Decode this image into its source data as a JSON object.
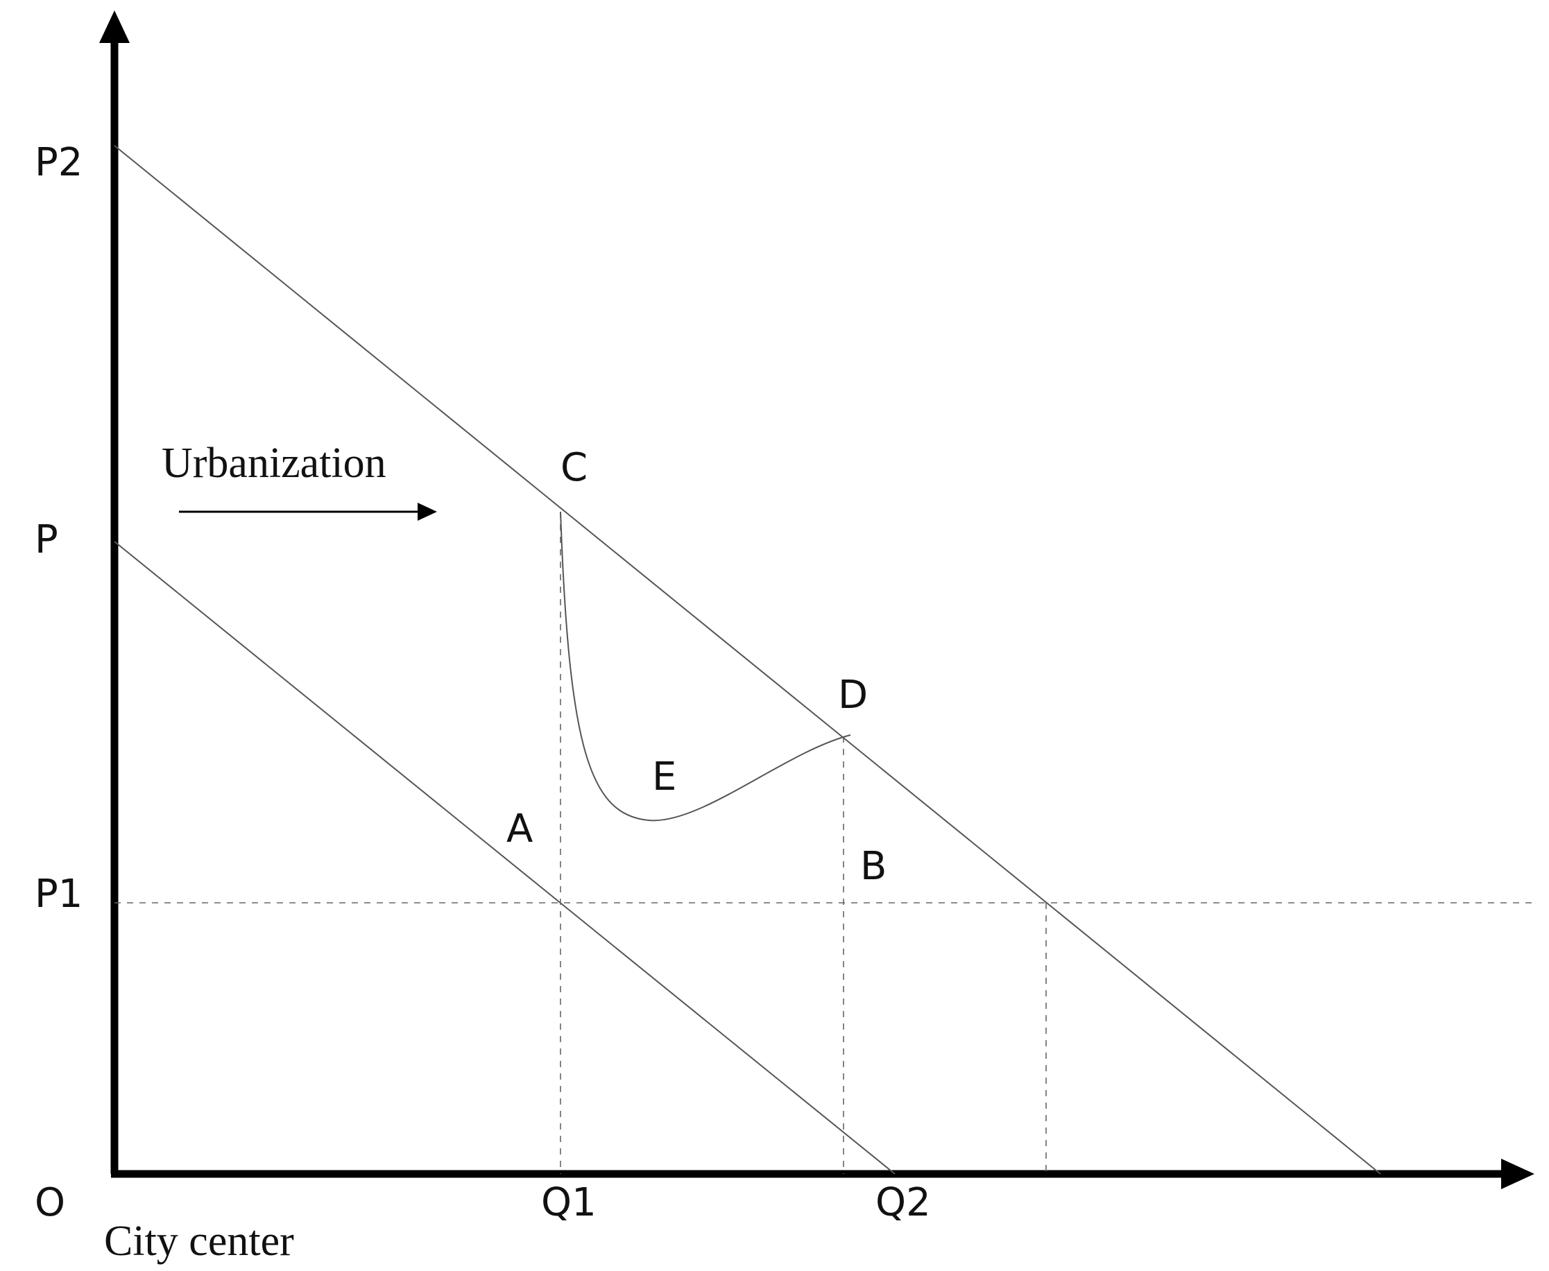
{
  "diagram": {
    "annotation": "Urbanization",
    "origin_label": "O",
    "origin_caption": "City center",
    "y_labels": {
      "p2": "P2",
      "p": "P",
      "p1": "P1"
    },
    "x_labels": {
      "q1": "Q1",
      "q2": "Q2"
    },
    "points": {
      "a": "A",
      "b": "B",
      "c": "C",
      "d": "D",
      "e": "E"
    }
  }
}
